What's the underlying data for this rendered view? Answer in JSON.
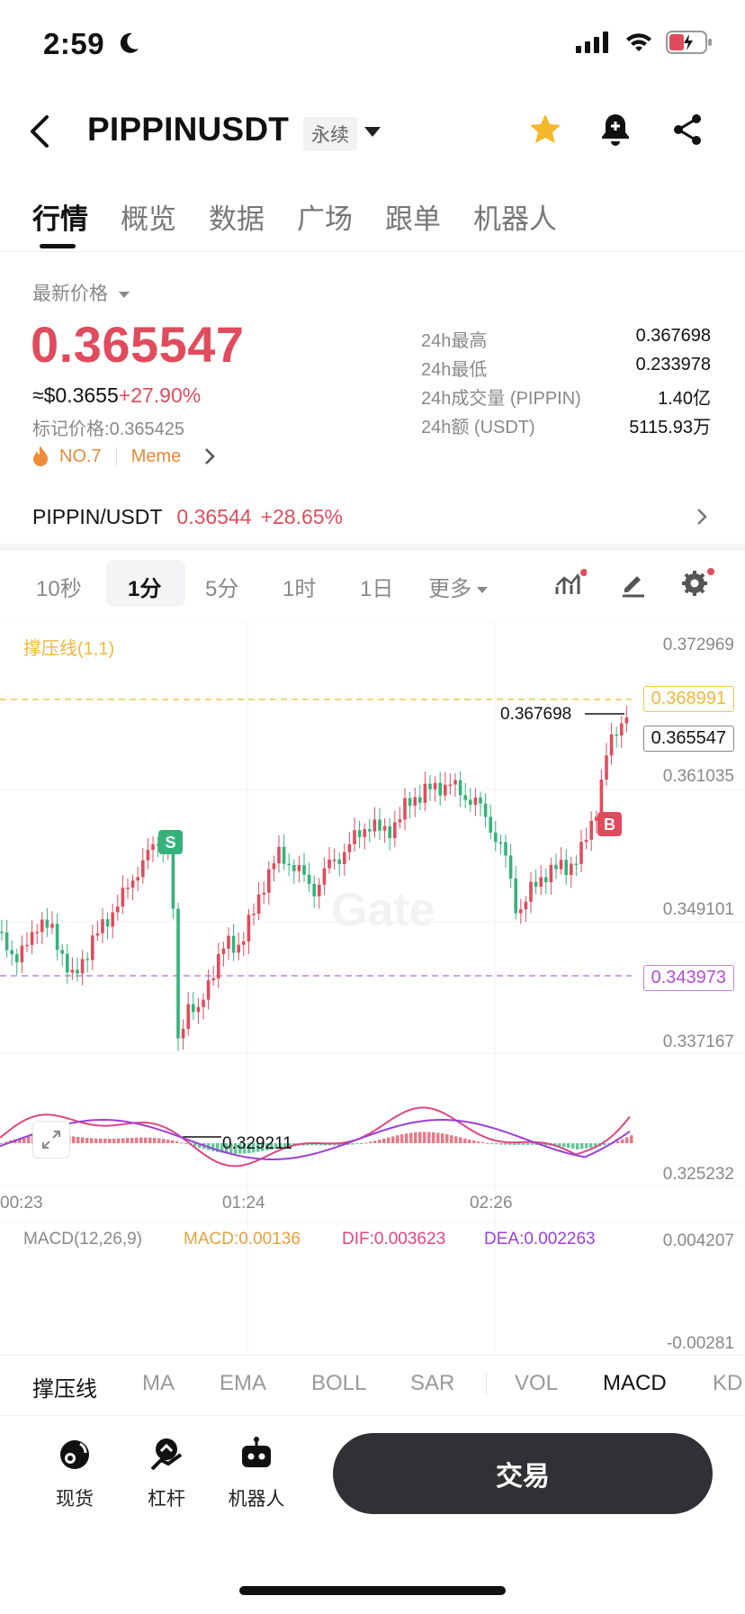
{
  "status_bar": {
    "time": "2:59"
  },
  "header": {
    "pair": "PIPPINUSDT",
    "contract_type": "永续"
  },
  "tabs": [
    "行情",
    "概览",
    "数据",
    "广场",
    "跟单",
    "机器人"
  ],
  "price": {
    "latest_label": "最新价格",
    "last": "0.365547",
    "usd": "≈$0.3655",
    "change": "+27.90%",
    "mark_label": "标记价格:",
    "mark": "0.365425",
    "rank": "NO.7",
    "category": "Meme"
  },
  "stats": [
    {
      "label": "24h最高",
      "value": "0.367698"
    },
    {
      "label": "24h最低",
      "value": "0.233978"
    },
    {
      "label": "24h成交量 (PIPPIN)",
      "value": "1.40亿"
    },
    {
      "label": "24h额 (USDT)",
      "value": "5115.93万"
    }
  ],
  "spot": {
    "pair": "PIPPIN/USDT",
    "price": "0.36544",
    "change": "+28.65%"
  },
  "intervals": [
    "10秒",
    "1分",
    "5分",
    "1时",
    "1日",
    "更多"
  ],
  "chart": {
    "indicator_label": "撑压线(1,1)",
    "price_axis": [
      "0.372969",
      "0.361035",
      "0.349101",
      "0.337167",
      "0.325232"
    ],
    "resistance": "0.368991",
    "current": "0.365547",
    "support": "0.343973",
    "high_mark": "0.367698",
    "low_mark": "0.329211",
    "time_axis": [
      "00:23",
      "01:24",
      "02:26"
    ],
    "sell_marker": "S",
    "buy_marker": "B",
    "watermark": "Gate",
    "colors": {
      "up": "#e04c5d",
      "down": "#35b27a",
      "resistance": "#f0b93a",
      "support": "#b04fd0"
    }
  },
  "macd": {
    "title": "MACD(12,26,9)",
    "macd": "MACD:0.00136",
    "dif": "DIF:0.003623",
    "dea": "DEA:0.002263",
    "axis_top": "0.004207",
    "axis_bottom": "-0.00281"
  },
  "indicators": [
    "撑压线",
    "MA",
    "EMA",
    "BOLL",
    "SAR",
    "VOL",
    "MACD",
    "KD"
  ],
  "bottom_nav": {
    "spot": "现货",
    "margin": "杠杆",
    "bot": "机器人",
    "trade": "交易"
  }
}
